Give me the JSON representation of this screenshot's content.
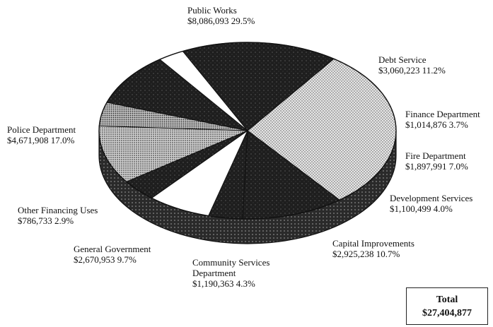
{
  "chart_data": {
    "type": "pie",
    "slices": [
      {
        "name": "Public Works",
        "value": "$8,086,093",
        "amount": 8086093,
        "percent": "29.5%",
        "pct": 29.5,
        "pattern": "dots-light"
      },
      {
        "name": "Debt Service",
        "value": "$3,060,223",
        "amount": 3060223,
        "percent": "11.2%",
        "pct": 11.2,
        "pattern": "dark"
      },
      {
        "name": "Finance Department",
        "value": "$1,014,876",
        "amount": 1014876,
        "percent": "3.7%",
        "pct": 3.7,
        "pattern": "dark"
      },
      {
        "name": "Fire Department",
        "value": "$1,897,991",
        "amount": 1897991,
        "percent": "7.0%",
        "pct": 7.0,
        "pattern": "white"
      },
      {
        "name": "Development Services",
        "value": "$1,100,499",
        "amount": 1100499,
        "percent": "4.0%",
        "pct": 4.0,
        "pattern": "dark"
      },
      {
        "name": "Capital Improvements",
        "value": "$2,925,238",
        "amount": 2925238,
        "percent": "10.7%",
        "pct": 10.7,
        "pattern": "dots-dense"
      },
      {
        "name": "Community Services Department",
        "value": "$1,190,363",
        "amount": 1190363,
        "percent": "4.3%",
        "pct": 4.3,
        "pattern": "dots-medium"
      },
      {
        "name": "General Government",
        "value": "$2,670,953",
        "amount": 2670953,
        "percent": "9.7%",
        "pct": 9.7,
        "pattern": "dark"
      },
      {
        "name": "Other Financing Uses",
        "value": "$786,733",
        "amount": 786733,
        "percent": "2.9%",
        "pct": 2.9,
        "pattern": "white"
      },
      {
        "name": "Police Department",
        "value": "$4,671,908",
        "amount": 4671908,
        "percent": "17.0%",
        "pct": 17.0,
        "pattern": "dark"
      }
    ],
    "total_label": "Total",
    "total_value": "$27,404,877"
  },
  "labels": [
    {
      "lines": [
        "Public Works",
        "$8,086,093  29.5%"
      ]
    },
    {
      "lines": [
        "Debt Service",
        "$3,060,223  11.2%"
      ]
    },
    {
      "lines": [
        "Finance Department",
        "$1,014,876  3.7%"
      ]
    },
    {
      "lines": [
        "Fire Department",
        "$1,897,991  7.0%"
      ]
    },
    {
      "lines": [
        "Development Services",
        "$1,100,499  4.0%"
      ]
    },
    {
      "lines": [
        "Capital Improvements",
        "$2,925,238  10.7%"
      ]
    },
    {
      "lines": [
        "Community Services",
        "Department",
        "$1,190,363  4.3%"
      ]
    },
    {
      "lines": [
        "General Government",
        "$2,670,953  9.7%"
      ]
    },
    {
      "lines": [
        "Other Financing Uses",
        "$786,733  2.9%"
      ]
    },
    {
      "lines": [
        "Police Department",
        "$4,671,908  17.0%"
      ]
    }
  ],
  "colors": {
    "dark": "#1e1e1e",
    "light": "#d8d8d8",
    "white": "#ffffff",
    "outline": "#111111"
  }
}
